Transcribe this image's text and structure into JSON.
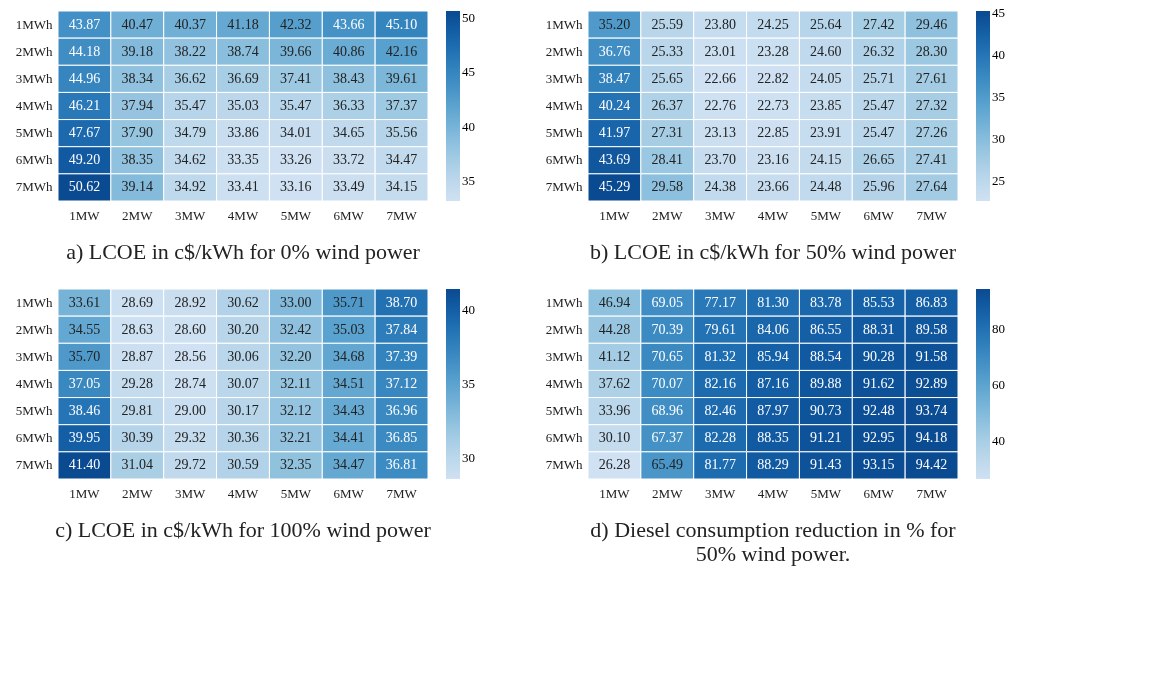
{
  "chart_data": [
    {
      "type": "heatmap",
      "title": "a) LCOE in c$/kWh for 0% wind power",
      "categories": [
        "1MW",
        "2MW",
        "3MW",
        "4MW",
        "5MW",
        "6MW",
        "7MW"
      ],
      "y_categories": [
        "1MWh",
        "2MWh",
        "3MWh",
        "4MWh",
        "5MWh",
        "6MWh",
        "7MWh"
      ],
      "cells": [
        [
          43.87,
          40.47,
          40.37,
          41.18,
          42.32,
          43.66,
          45.1
        ],
        [
          44.18,
          39.18,
          38.22,
          38.74,
          39.66,
          40.86,
          42.16
        ],
        [
          44.96,
          38.34,
          36.62,
          36.69,
          37.41,
          38.43,
          39.61
        ],
        [
          46.21,
          37.94,
          35.47,
          35.03,
          35.47,
          36.33,
          37.37
        ],
        [
          47.67,
          37.9,
          34.79,
          33.86,
          34.01,
          34.65,
          35.56
        ],
        [
          49.2,
          38.35,
          34.62,
          33.35,
          33.26,
          33.72,
          34.47
        ],
        [
          50.62,
          39.14,
          34.92,
          33.41,
          33.16,
          33.49,
          34.15
        ]
      ],
      "cell_labels": [
        [
          "43.87",
          "40.47",
          "40.37",
          "41.18",
          "42.32",
          "43.66",
          "45.10"
        ],
        [
          "44.18",
          "39.18",
          "38.22",
          "38.74",
          "39.66",
          "40.86",
          "42.16"
        ],
        [
          "44.96",
          "38.34",
          "36.62",
          "36.69",
          "37.41",
          "38.43",
          "39.61"
        ],
        [
          "46.21",
          "37.94",
          "35.47",
          "35.03",
          "35.47",
          "36.33",
          "37.37"
        ],
        [
          "47.67",
          "37.90",
          "34.79",
          "33.86",
          "34.01",
          "34.65",
          "35.56"
        ],
        [
          "49.20",
          "38.35",
          "34.62",
          "33.35",
          "33.26",
          "33.72",
          "34.47"
        ],
        [
          "50.62",
          "39.14",
          "34.92",
          "33.41",
          "33.16",
          "33.49",
          "34.15"
        ]
      ],
      "clim": [
        33.16,
        50.62
      ],
      "cticks": [
        35,
        40,
        45,
        50
      ]
    },
    {
      "type": "heatmap",
      "title": "b) LCOE in c$/kWh for 50% wind power",
      "categories": [
        "1MW",
        "2MW",
        "3MW",
        "4MW",
        "5MW",
        "6MW",
        "7MW"
      ],
      "y_categories": [
        "1MWh",
        "2MWh",
        "3MWh",
        "4MWh",
        "5MWh",
        "6MWh",
        "7MWh"
      ],
      "cells": [
        [
          35.2,
          25.59,
          23.8,
          24.25,
          25.64,
          27.42,
          29.46
        ],
        [
          36.76,
          25.33,
          23.01,
          23.28,
          24.6,
          26.32,
          28.3
        ],
        [
          38.47,
          25.65,
          22.66,
          22.82,
          24.05,
          25.71,
          27.61
        ],
        [
          40.24,
          26.37,
          22.76,
          22.73,
          23.85,
          25.47,
          27.32
        ],
        [
          41.97,
          27.31,
          23.13,
          22.85,
          23.91,
          25.47,
          27.26
        ],
        [
          43.69,
          28.41,
          23.7,
          23.16,
          24.15,
          26.65,
          27.41
        ],
        [
          45.29,
          29.58,
          24.38,
          23.66,
          24.48,
          25.96,
          27.64
        ]
      ],
      "cell_labels": [
        [
          "35.20",
          "25.59",
          "23.80",
          "24.25",
          "25.64",
          "27.42",
          "29.46"
        ],
        [
          "36.76",
          "25.33",
          "23.01",
          "23.28",
          "24.60",
          "26.32",
          "28.30"
        ],
        [
          "38.47",
          "25.65",
          "22.66",
          "22.82",
          "24.05",
          "25.71",
          "27.61"
        ],
        [
          "40.24",
          "26.37",
          "22.76",
          "22.73",
          "23.85",
          "25.47",
          "27.32"
        ],
        [
          "41.97",
          "27.31",
          "23.13",
          "22.85",
          "23.91",
          "25.47",
          "27.26"
        ],
        [
          "43.69",
          "28.41",
          "23.70",
          "23.16",
          "24.15",
          "26.65",
          "27.41"
        ],
        [
          "45.29",
          "29.58",
          "24.38",
          "23.66",
          "24.48",
          "25.96",
          "27.64"
        ]
      ],
      "clim": [
        22.66,
        45.29
      ],
      "cticks": [
        25,
        30,
        35,
        40,
        45
      ]
    },
    {
      "type": "heatmap",
      "title": "c) LCOE in c$/kWh for 100% wind power",
      "categories": [
        "1MW",
        "2MW",
        "3MW",
        "4MW",
        "5MW",
        "6MW",
        "7MW"
      ],
      "y_categories": [
        "1MWh",
        "2MWh",
        "3MWh",
        "4MWh",
        "5MWh",
        "6MWh",
        "7MWh"
      ],
      "cells": [
        [
          33.61,
          28.69,
          28.92,
          30.62,
          33.0,
          35.71,
          38.7
        ],
        [
          34.55,
          28.63,
          28.6,
          30.2,
          32.42,
          35.03,
          37.84
        ],
        [
          35.7,
          28.87,
          28.56,
          30.06,
          32.2,
          34.68,
          37.39
        ],
        [
          37.05,
          29.28,
          28.74,
          30.07,
          32.11,
          34.51,
          37.12
        ],
        [
          38.46,
          29.81,
          29.0,
          30.17,
          32.12,
          34.43,
          36.96
        ],
        [
          39.95,
          30.39,
          29.32,
          30.36,
          32.21,
          34.41,
          36.85
        ],
        [
          41.4,
          31.04,
          29.72,
          30.59,
          32.35,
          34.47,
          36.81
        ]
      ],
      "cell_labels": [
        [
          "33.61",
          "28.69",
          "28.92",
          "30.62",
          "33.00",
          "35.71",
          "38.70"
        ],
        [
          "34.55",
          "28.63",
          "28.60",
          "30.20",
          "32.42",
          "35.03",
          "37.84"
        ],
        [
          "35.70",
          "28.87",
          "28.56",
          "30.06",
          "32.20",
          "34.68",
          "37.39"
        ],
        [
          "37.05",
          "29.28",
          "28.74",
          "30.07",
          "32.11",
          "34.51",
          "37.12"
        ],
        [
          "38.46",
          "29.81",
          "29.00",
          "30.17",
          "32.12",
          "34.43",
          "36.96"
        ],
        [
          "39.95",
          "30.39",
          "29.32",
          "30.36",
          "32.21",
          "34.41",
          "36.85"
        ],
        [
          "41.40",
          "31.04",
          "29.72",
          "30.59",
          "32.35",
          "34.47",
          "36.81"
        ]
      ],
      "clim": [
        28.56,
        41.4
      ],
      "cticks": [
        30,
        35,
        40
      ]
    },
    {
      "type": "heatmap",
      "title": "d) Diesel consumption reduction in % for\n50% wind power.",
      "categories": [
        "1MW",
        "2MW",
        "3MW",
        "4MW",
        "5MW",
        "6MW",
        "7MW"
      ],
      "y_categories": [
        "1MWh",
        "2MWh",
        "3MWh",
        "4MWh",
        "5MWh",
        "6MWh",
        "7MWh"
      ],
      "cells": [
        [
          46.94,
          69.05,
          77.17,
          81.3,
          83.78,
          85.53,
          86.83
        ],
        [
          44.28,
          70.39,
          79.61,
          84.06,
          86.55,
          88.31,
          89.58
        ],
        [
          41.12,
          70.65,
          81.32,
          85.94,
          88.54,
          90.28,
          91.58
        ],
        [
          37.62,
          70.07,
          82.16,
          87.16,
          89.88,
          91.62,
          92.89
        ],
        [
          33.96,
          68.96,
          82.46,
          87.97,
          90.73,
          92.48,
          93.74
        ],
        [
          30.1,
          67.37,
          82.28,
          88.35,
          91.21,
          92.95,
          94.18
        ],
        [
          26.28,
          65.49,
          81.77,
          88.29,
          91.43,
          93.15,
          94.42
        ]
      ],
      "cell_labels": [
        [
          "46.94",
          "69.05",
          "77.17",
          "81.30",
          "83.78",
          "85.53",
          "86.83"
        ],
        [
          "44.28",
          "70.39",
          "79.61",
          "84.06",
          "86.55",
          "88.31",
          "89.58"
        ],
        [
          "41.12",
          "70.65",
          "81.32",
          "85.94",
          "88.54",
          "90.28",
          "91.58"
        ],
        [
          "37.62",
          "70.07",
          "82.16",
          "87.16",
          "89.88",
          "91.62",
          "92.89"
        ],
        [
          "33.96",
          "68.96",
          "82.46",
          "87.97",
          "90.73",
          "92.48",
          "93.74"
        ],
        [
          "30.10",
          "67.37",
          "82.28",
          "88.35",
          "91.21",
          "92.95",
          "94.18"
        ],
        [
          "26.28",
          "65.49",
          "81.77",
          "88.29",
          "91.43",
          "93.15",
          "94.42"
        ]
      ],
      "clim": [
        26.28,
        94.42
      ],
      "cticks": [
        40,
        60,
        80
      ]
    }
  ]
}
